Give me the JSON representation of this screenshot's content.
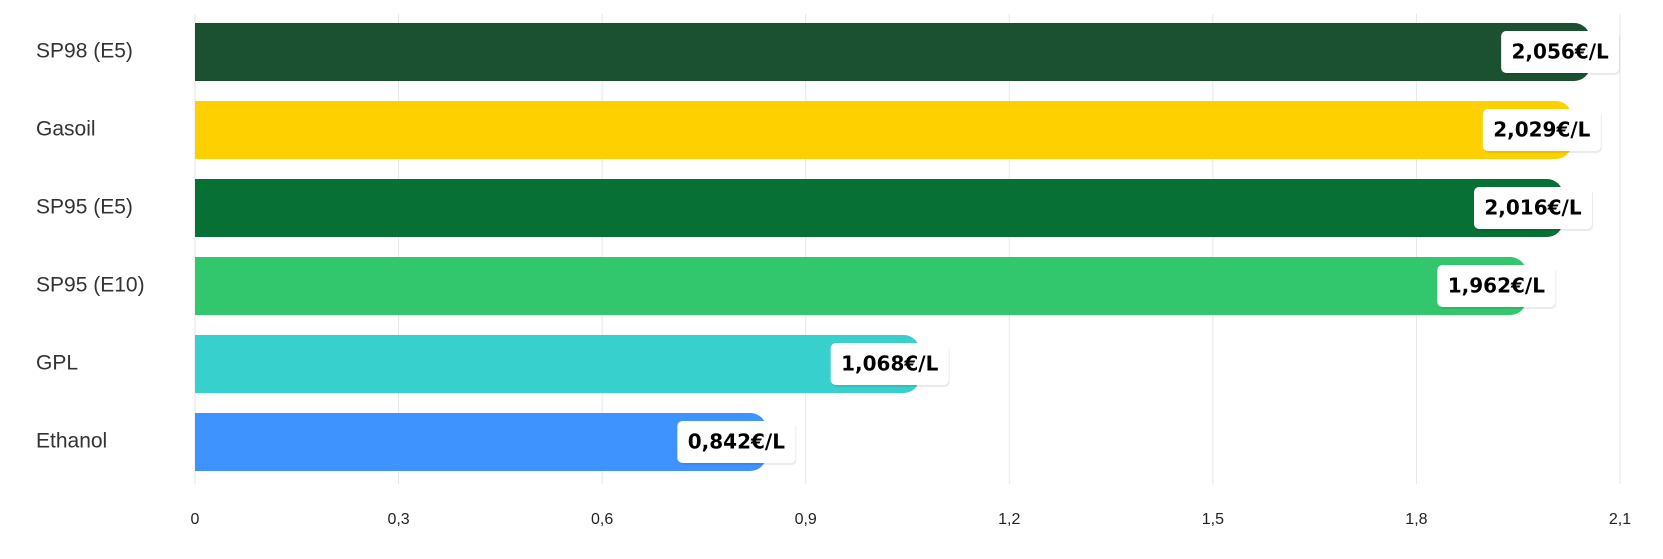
{
  "chart_data": {
    "type": "bar",
    "orientation": "horizontal",
    "categories": [
      "SP98 (E5)",
      "Gasoil",
      "SP95 (E5)",
      "SP95 (E10)",
      "GPL",
      "Ethanol"
    ],
    "values": [
      2.056,
      2.029,
      2.016,
      1.962,
      1.068,
      0.842
    ],
    "value_labels": [
      "2,056€/L",
      "2,029€/L",
      "2,016€/L",
      "1,962€/L",
      "1,068€/L",
      "0,842€/L"
    ],
    "colors": [
      "#1b5131",
      "#ffd000",
      "#077135",
      "#32c76d",
      "#37d0cc",
      "#3e93ff"
    ],
    "xlim": [
      0,
      2.1
    ],
    "ticks": [
      0,
      0.3,
      0.6,
      0.9,
      1.2,
      1.5,
      1.8,
      2.1
    ],
    "tick_labels": [
      "0",
      "0,3",
      "0,6",
      "0,9",
      "1,2",
      "1,5",
      "1,8",
      "2,1"
    ],
    "grid": true
  }
}
